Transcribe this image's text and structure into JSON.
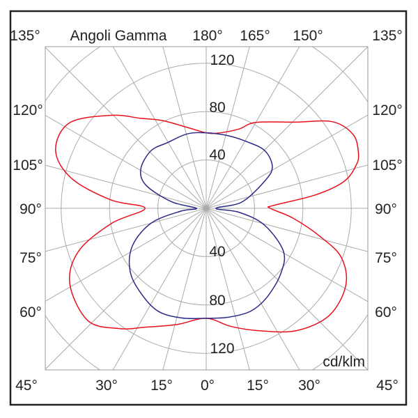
{
  "chart_data": {
    "type": "polar",
    "title": "Angoli Gamma",
    "unit": "cd/klm",
    "radial_ticks": [
      40,
      80,
      120
    ],
    "radial_rings": [
      40,
      80,
      120,
      160
    ],
    "spoke_step_deg": 15,
    "grid": true,
    "top_angle_labels": [
      "135°",
      "180°",
      "165°",
      "150°",
      "135°"
    ],
    "side_angle_labels": [
      "120°",
      "105°",
      "90°",
      "75°",
      "60°"
    ],
    "bottom_angle_labels": [
      "45°",
      "30°",
      "15°",
      "0°",
      "15°",
      "30°",
      "45°"
    ],
    "series": [
      {
        "color": "#e8101c",
        "right": [
          [
            0,
            91
          ],
          [
            12,
            100
          ],
          [
            24,
            111
          ],
          [
            36.6,
            126
          ],
          [
            49,
            135
          ],
          [
            61,
            132
          ],
          [
            70,
            119
          ],
          [
            76,
            97.5
          ],
          [
            83.6,
            72
          ],
          [
            90,
            53
          ],
          [
            92.5,
            56
          ],
          [
            97,
            91
          ],
          [
            101,
            116
          ],
          [
            106,
            129
          ],
          [
            110,
            134
          ],
          [
            116.7,
            136
          ],
          [
            124.5,
            126.5
          ],
          [
            133.8,
            103
          ],
          [
            150,
            82
          ],
          [
            157.5,
            71
          ],
          [
            171,
            63
          ],
          [
            180,
            62.5
          ]
        ],
        "left": [
          [
            0,
            91
          ],
          [
            14,
            99
          ],
          [
            26.7,
            110
          ],
          [
            36,
            123
          ],
          [
            46.5,
            135
          ],
          [
            61,
            129
          ],
          [
            71.6,
            111
          ],
          [
            81,
            79
          ],
          [
            90,
            50.6
          ],
          [
            95,
            79
          ],
          [
            102.5,
            114
          ],
          [
            111,
            133.5
          ],
          [
            122,
            133.4
          ],
          [
            134.4,
            110
          ],
          [
            144,
            92
          ],
          [
            153.6,
            81
          ],
          [
            167,
            68.6
          ],
          [
            180,
            62.5
          ]
        ]
      },
      {
        "color": "#2a2a86",
        "right": [
          [
            0,
            91
          ],
          [
            12,
            92
          ],
          [
            23.5,
            92.7
          ],
          [
            34.5,
            89
          ],
          [
            48.8,
            82
          ],
          [
            61,
            73
          ],
          [
            74,
            50
          ],
          [
            83,
            27.5
          ],
          [
            90,
            8
          ],
          [
            100,
            30
          ],
          [
            115,
            53.5
          ],
          [
            122,
            64.5
          ],
          [
            134.5,
            68
          ],
          [
            149,
            64.5
          ],
          [
            163.6,
            62.7
          ],
          [
            180,
            62.5
          ]
        ],
        "left": [
          [
            0,
            91
          ],
          [
            13,
            93
          ],
          [
            25,
            94
          ],
          [
            36.8,
            89
          ],
          [
            50,
            82
          ],
          [
            63,
            68.6
          ],
          [
            75,
            47
          ],
          [
            83.7,
            21
          ],
          [
            90,
            8
          ],
          [
            100.7,
            29
          ],
          [
            110.8,
            53
          ],
          [
            120.7,
            63
          ],
          [
            136,
            66
          ],
          [
            150,
            63
          ],
          [
            165.5,
            63.5
          ],
          [
            180,
            62.5
          ]
        ]
      }
    ]
  }
}
